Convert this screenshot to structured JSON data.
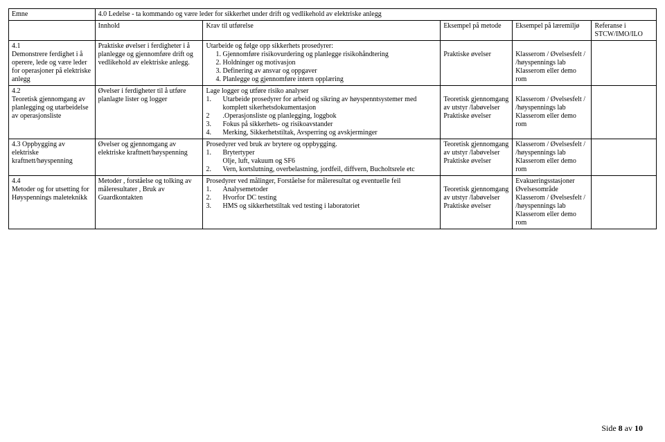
{
  "header": {
    "emne_label": "Emne",
    "title": "4.0 Ledelse - ta kommando og være leder for sikkerhet under drift og vedlikehold av elektriske anlegg",
    "innhold_label": "Innhold",
    "krav_label": "Krav til utførelse",
    "metode_label": "Eksempel på metode",
    "miljo_label": "Eksempel på læremiljø",
    "ref_label": "Referanse i STCW/IMO/ILO"
  },
  "rows": [
    {
      "emne": "4.1\nDemonstrere ferdighet i å operere, lede og være leder for operasjoner på elektriske anlegg",
      "innhold": "Praktiske øvelser i ferdigheter i å planlegge og gjennomføre drift og vedlikehold av elektriske anlegg.",
      "krav_intro": "Utarbeide og følge opp sikkerhets prosedyrer:",
      "krav_items": [
        "Gjennomføre risikovurdering og planlegge risikohåndtering",
        "Holdninger og motivasjon",
        "Definering av ansvar og oppgaver",
        "Planlegge og gjennomføre intern opplæring"
      ],
      "metode": "Praktiske øvelser",
      "miljo": "Klasserom / Øvelsesfelt / /høyspennings lab Klasserom eller demo rom"
    },
    {
      "emne": "4.2\nTeoretisk gjennomgang av planlegging og utarbeidelse av operasjonsliste",
      "innhold": "Øvelser i ferdigheter til å utføre planlagte lister og logger",
      "krav_intro": "Lage logger og utføre risiko analyser",
      "krav_lines": [
        {
          "n": "1.",
          "t": "Utarbeide prosedyrer for arbeid og sikring av høyspenntsystemer med komplett sikerhetsdokumentasjon"
        },
        {
          "n": "2",
          "t": ".Operasjonsliste og planlegging, loggbok"
        },
        {
          "n": "3.",
          "t": "Fokus på sikkerhets- og risikoavstander"
        },
        {
          "n": "4.",
          "t": "Merking, Sikkerhetstiltak, Avsperring og avskjerminger"
        }
      ],
      "metode": "Teoretisk gjennomgang av utstyr /labøvelser Praktiske øvelser",
      "miljo": "Klasserom / Øvelsesfelt / /høyspennings lab Klasserom eller demo rom"
    },
    {
      "emne": "4.3 Oppbygging av elektriske kraftnett/høyspenning",
      "innhold": "Øvelser og gjennomgang av elektriske kraftnett/høyspenning",
      "krav_intro": "Prosedyrer ved bruk av brytere og  oppbygging.",
      "krav_lines": [
        {
          "n": "1.",
          "t": "Brytertyper"
        },
        {
          "n": "",
          "t": "Olje, luft, vakuum og SF6"
        },
        {
          "n": "2.",
          "t": "Vern, kortslutning, overbelastning, jordfeil, diffvern, Bucholtsrele etc"
        }
      ],
      "metode": "Teoretisk gjennomgang av utstyr /labøvelser Praktiske øvelser",
      "miljo": "Klasserom / Øvelsesfelt / /høyspennings lab Klasserom eller demo rom"
    },
    {
      "emne": "4.4\nMetoder og for utsetting for Høyspennings maleteknikk",
      "innhold": "Metoder , forståelse og tolking av måleresultater , Bruk av Guardkontakten",
      "krav_intro": "Prosedyrer ved målinger, Forståelse for måleresultat og eventuelle feil",
      "krav_lines": [
        {
          "n": "1.",
          "t": "Analysemetoder"
        },
        {
          "n": "2.",
          "t": "Hvorfor DC testing"
        },
        {
          "n": "3.",
          "t": "HMS og sikkerhetstiltak ved testing i laboratoriet"
        }
      ],
      "metode": "Teoretisk gjennomgang av utstyr /labøvelser Praktiske øvelser",
      "miljo": "Evakueringsstasjoner Øvelsesområde Klasserom / Øvelsesfelt / /høyspennings lab Klasserom eller demo rom"
    }
  ],
  "footer": {
    "prefix": "Side ",
    "page": "8",
    "of": " av ",
    "total": "10"
  }
}
